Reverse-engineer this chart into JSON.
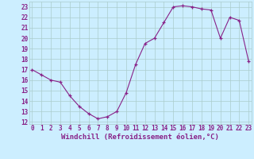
{
  "x": [
    0,
    1,
    2,
    3,
    4,
    5,
    6,
    7,
    8,
    9,
    10,
    11,
    12,
    13,
    14,
    15,
    16,
    17,
    18,
    19,
    20,
    21,
    22,
    23
  ],
  "y": [
    17,
    16.5,
    16,
    15.8,
    14.5,
    13.5,
    12.8,
    12.3,
    12.5,
    13,
    14.8,
    17.5,
    19.5,
    20.0,
    21.5,
    23.0,
    23.1,
    23.0,
    22.8,
    22.7,
    20.0,
    22.0,
    21.7,
    17.8
  ],
  "line_color": "#882288",
  "marker": "P",
  "marker_color": "#882288",
  "bg_color": "#cceeff",
  "grid_color": "#aacccc",
  "xlabel": "Windchill (Refroidissement éolien,°C)",
  "xlabel_color": "#882288",
  "ylim": [
    11.8,
    23.5
  ],
  "xlim": [
    -0.3,
    23.3
  ],
  "yticks": [
    12,
    13,
    14,
    15,
    16,
    17,
    18,
    19,
    20,
    21,
    22,
    23
  ],
  "xticks": [
    0,
    1,
    2,
    3,
    4,
    5,
    6,
    7,
    8,
    9,
    10,
    11,
    12,
    13,
    14,
    15,
    16,
    17,
    18,
    19,
    20,
    21,
    22,
    23
  ],
  "tick_fontsize": 5.5,
  "xlabel_fontsize": 6.5,
  "markersize": 2.5,
  "linewidth": 0.8
}
